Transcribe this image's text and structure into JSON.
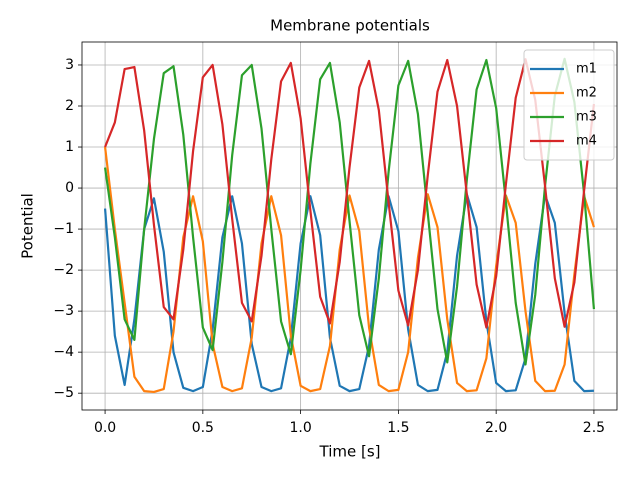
{
  "chart_data": {
    "type": "line",
    "title": "Membrane potentials",
    "x_label": "Time [s]",
    "y_label": "Potential",
    "x": [
      0,
      0.05,
      0.1,
      0.15,
      0.2,
      0.25,
      0.3,
      0.35,
      0.4,
      0.45,
      0.5,
      0.55,
      0.6,
      0.65,
      0.7,
      0.75,
      0.8,
      0.85,
      0.9,
      0.95,
      1.0,
      1.05,
      1.1,
      1.15,
      1.2,
      1.25,
      1.3,
      1.35,
      1.4,
      1.45,
      1.5,
      1.55,
      1.6,
      1.65,
      1.7,
      1.75,
      1.8,
      1.85,
      1.9,
      1.95,
      2.0,
      2.05,
      2.1,
      2.15,
      2.2,
      2.25,
      2.3,
      2.35,
      2.4,
      2.45,
      2.5
    ],
    "series": [
      {
        "name": "m1",
        "color": "#1f77b4",
        "values": [
          -0.5,
          -3.6,
          -4.8,
          -3.2,
          -1.0,
          -0.25,
          -1.55,
          -4.0,
          -4.87,
          -4.95,
          -4.85,
          -3.45,
          -1.2,
          -0.2,
          -1.35,
          -3.8,
          -4.85,
          -4.95,
          -4.88,
          -3.65,
          -1.35,
          -0.2,
          -1.15,
          -3.65,
          -4.82,
          -4.95,
          -4.9,
          -3.85,
          -1.5,
          -0.2,
          -1.05,
          -3.45,
          -4.8,
          -4.95,
          -4.92,
          -4.0,
          -1.65,
          -0.15,
          -0.95,
          -3.25,
          -4.75,
          -4.95,
          -4.93,
          -4.15,
          -1.85,
          -0.17,
          -0.85,
          -3.05,
          -4.7,
          -4.95,
          -4.94
        ]
      },
      {
        "name": "m2",
        "color": "#ff7f0e",
        "values": [
          1.0,
          -1.0,
          -2.8,
          -4.6,
          -4.95,
          -4.97,
          -4.9,
          -3.5,
          -1.2,
          -0.2,
          -1.3,
          -3.8,
          -4.85,
          -4.95,
          -4.88,
          -3.65,
          -1.35,
          -0.2,
          -1.15,
          -3.6,
          -4.82,
          -4.95,
          -4.9,
          -3.85,
          -1.5,
          -0.18,
          -1.05,
          -3.4,
          -4.8,
          -4.95,
          -4.92,
          -4.0,
          -1.7,
          -0.15,
          -0.95,
          -3.2,
          -4.75,
          -4.95,
          -4.93,
          -4.15,
          -1.9,
          -0.18,
          -0.85,
          -3.0,
          -4.7,
          -4.95,
          -4.94,
          -4.3,
          -2.1,
          -0.2,
          -0.95
        ]
      },
      {
        "name": "m3",
        "color": "#2ca02c",
        "values": [
          0.5,
          -1.2,
          -3.2,
          -3.7,
          -1.0,
          1.2,
          2.8,
          2.97,
          1.3,
          -1.2,
          -3.4,
          -3.95,
          -1.8,
          0.8,
          2.75,
          3.0,
          1.45,
          -1.0,
          -3.25,
          -4.05,
          -2.0,
          0.6,
          2.65,
          3.05,
          1.6,
          -0.8,
          -3.1,
          -4.1,
          -2.2,
          0.4,
          2.5,
          3.1,
          1.8,
          -0.6,
          -2.95,
          -4.25,
          -2.4,
          0.2,
          2.4,
          3.12,
          1.95,
          -0.35,
          -2.8,
          -4.3,
          -2.6,
          0.05,
          2.25,
          3.15,
          2.1,
          -0.15,
          -2.95
        ]
      },
      {
        "name": "m4",
        "color": "#d62728",
        "values": [
          1.0,
          1.6,
          2.9,
          2.95,
          1.4,
          -0.9,
          -2.9,
          -3.2,
          -1.5,
          0.9,
          2.7,
          3.0,
          1.55,
          -0.75,
          -2.8,
          -3.25,
          -1.65,
          0.7,
          2.6,
          3.05,
          1.7,
          -0.55,
          -2.65,
          -3.3,
          -1.8,
          0.5,
          2.45,
          3.1,
          1.9,
          -0.35,
          -2.5,
          -3.35,
          -2.0,
          0.3,
          2.35,
          3.12,
          2.0,
          -0.15,
          -2.35,
          -3.4,
          -2.15,
          0.1,
          2.2,
          3.14,
          2.15,
          0.05,
          -2.2,
          -3.38,
          -2.3,
          -0.05,
          2.05
        ]
      }
    ],
    "xlim": [
      -0.118,
      2.618
    ],
    "ylim": [
      -5.41,
      3.56
    ],
    "xticks": [
      {
        "value": 0,
        "label": "0.0"
      },
      0.5,
      {
        "value": 1,
        "label": "1.0"
      },
      1.5,
      {
        "value": 2,
        "label": "2.0"
      },
      2.5
    ],
    "yticks": [
      {
        "value": -5,
        "label": "−5"
      },
      {
        "value": -4,
        "label": "−4"
      },
      {
        "value": -3,
        "label": "−3"
      },
      {
        "value": -2,
        "label": "−2"
      },
      {
        "value": -1,
        "label": "−1"
      },
      0,
      1,
      2,
      3
    ],
    "grid": true,
    "legend": "upper right"
  }
}
